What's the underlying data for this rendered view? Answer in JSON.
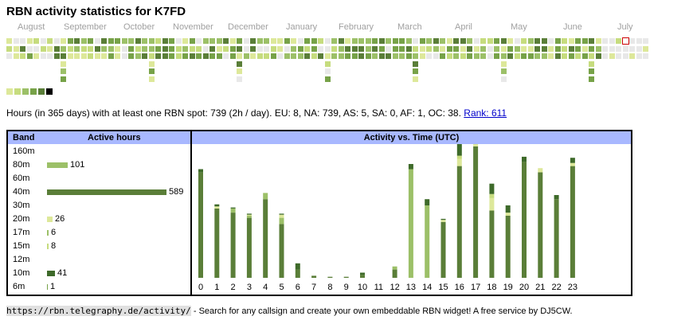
{
  "title": "RBN activity statistics for K7FD",
  "months": [
    "August",
    "September",
    "October",
    "November",
    "December",
    "January",
    "February",
    "March",
    "April",
    "May",
    "June",
    "July"
  ],
  "colors": {
    "empty": "#e8e8e8",
    "levels": [
      "#dde89a",
      "#c6dc7e",
      "#9cc068",
      "#77a248",
      "#5a7e38",
      "#000000"
    ],
    "header_bg": "#a8b8ff",
    "today_outline": "#cc0000"
  },
  "legend_levels": 6,
  "stats_text": "Hours (in 365 days) with at least one RBN spot: 739 (2h / day). EU: 8, NA: 739, AS: 5, SA: 0, AF: 1, OC: 38.",
  "rank_link": "Rank: 611",
  "bands_panel": {
    "col_band": "Band",
    "col_active": "Active hours",
    "rows": [
      {
        "band": "160m",
        "hours": null,
        "color": ""
      },
      {
        "band": "80m",
        "hours": 101,
        "color": "#9cc068"
      },
      {
        "band": "60m",
        "hours": null,
        "color": ""
      },
      {
        "band": "40m",
        "hours": 589,
        "color": "#5a7e38"
      },
      {
        "band": "30m",
        "hours": null,
        "color": ""
      },
      {
        "band": "20m",
        "hours": 26,
        "color": "#dde89a"
      },
      {
        "band": "17m",
        "hours": 6,
        "color": "#9cc068"
      },
      {
        "band": "15m",
        "hours": 8,
        "color": "#c6dc7e"
      },
      {
        "band": "12m",
        "hours": null,
        "color": ""
      },
      {
        "band": "10m",
        "hours": 41,
        "color": "#3e6a2a"
      },
      {
        "band": "6m",
        "hours": 1,
        "color": "#77a248"
      }
    ]
  },
  "time_panel": {
    "title": "Activity vs. Time (UTC)"
  },
  "chart_data": {
    "type": "bar",
    "title": "Activity vs. Time (UTC)",
    "categories": [
      "0",
      "1",
      "2",
      "3",
      "4",
      "5",
      "6",
      "7",
      "8",
      "9",
      "10",
      "11",
      "12",
      "13",
      "14",
      "15",
      "16",
      "17",
      "18",
      "19",
      "20",
      "21",
      "22",
      "23"
    ],
    "series": [
      {
        "color": "#5a7e38",
        "values": [
          102,
          67,
          63,
          58,
          76,
          52,
          8,
          2,
          1,
          1,
          3,
          0,
          8,
          0,
          0,
          54,
          108,
          127,
          65,
          60,
          112,
          102,
          76,
          108
        ]
      },
      {
        "color": "#9cc068",
        "values": [
          0,
          0,
          4,
          2,
          6,
          6,
          0,
          0,
          0,
          0,
          0,
          0,
          3,
          105,
          70,
          0,
          0,
          0,
          0,
          0,
          0,
          0,
          0,
          0
        ]
      },
      {
        "color": "#dde89a",
        "values": [
          0,
          2,
          0,
          1,
          0,
          3,
          0,
          0,
          0,
          0,
          0,
          0,
          0,
          0,
          0,
          2,
          7,
          3,
          12,
          3,
          0,
          4,
          0,
          3
        ]
      },
      {
        "color": "#c6dc7e",
        "values": [
          0,
          0,
          0,
          0,
          0,
          0,
          0,
          0,
          0,
          0,
          0,
          0,
          0,
          0,
          0,
          0,
          3,
          3,
          4,
          0,
          0,
          0,
          0,
          0
        ]
      },
      {
        "color": "#3e6a2a",
        "values": [
          3,
          2,
          1,
          1,
          0,
          1,
          6,
          0,
          0,
          0,
          2,
          0,
          0,
          5,
          6,
          1,
          16,
          18,
          10,
          7,
          5,
          0,
          4,
          5
        ]
      }
    ]
  },
  "footer": {
    "url": "https://rbn.telegraphy.de/activity/",
    "text": " - Search for any callsign and create your own embeddable RBN widget! A free service by DJ5CW."
  }
}
